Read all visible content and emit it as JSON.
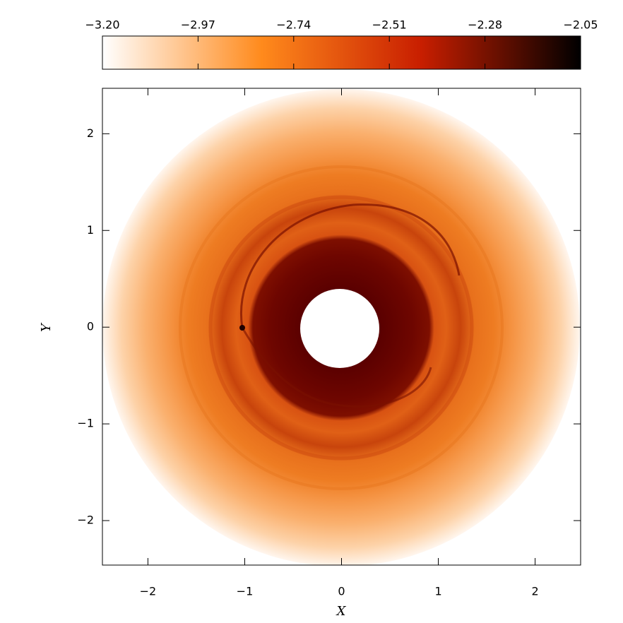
{
  "chart_data": {
    "type": "image",
    "xlabel": "X",
    "ylabel": "Y",
    "xlim": [
      -2.47,
      2.47
    ],
    "ylim": [
      -2.46,
      2.47
    ],
    "xticks": [
      {
        "value": -2,
        "label": "−2"
      },
      {
        "value": -1,
        "label": "−1"
      },
      0,
      1,
      2
    ],
    "yticks": [
      {
        "value": -2,
        "label": "−2"
      },
      {
        "value": -1,
        "label": "−1"
      },
      0,
      1,
      2
    ],
    "colorbar": {
      "lim": [
        -3.2,
        -2.05
      ],
      "ticks": [
        {
          "value": -3.2,
          "label": "−3.20"
        },
        {
          "value": -2.97,
          "label": "−2.97"
        },
        {
          "value": -2.74,
          "label": "−2.74"
        },
        {
          "value": -2.51,
          "label": "−2.51"
        },
        {
          "value": -2.28,
          "label": "−2.28"
        },
        {
          "value": -2.05,
          "label": "−2.05"
        }
      ],
      "colors": [
        "#ffffff",
        "#ff8a1c",
        "#c81e00",
        "#000000"
      ]
    }
  }
}
